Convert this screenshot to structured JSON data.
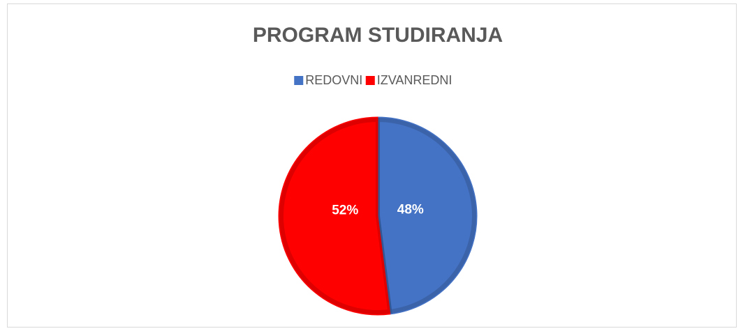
{
  "chart_data": {
    "type": "pie",
    "title": "PROGRAM STUDIRANJA",
    "categories": [
      "REDOVNI",
      "IZVANREDNI"
    ],
    "values": [
      48,
      52
    ],
    "value_labels": [
      "48%",
      "52%"
    ],
    "colors": [
      "#4472c4",
      "#ff0000"
    ],
    "legend": "top"
  }
}
